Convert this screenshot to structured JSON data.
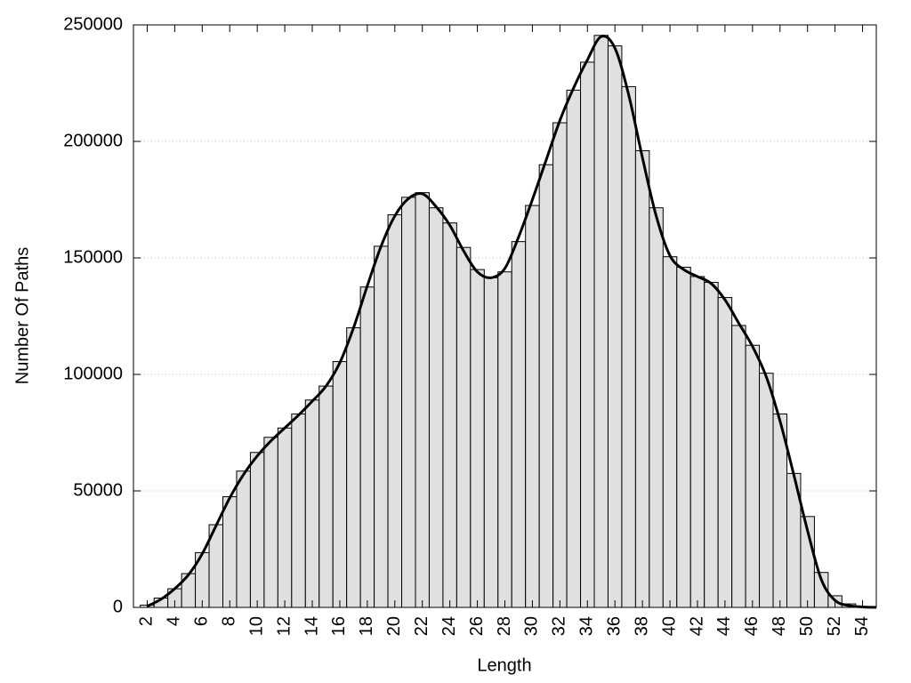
{
  "chart_data": {
    "type": "histogram",
    "x_label": "Length",
    "y_label": "Number Of Paths",
    "bins": [
      1.5,
      2.5,
      3.5,
      4.5,
      5.5,
      6.5,
      7.5,
      8.5,
      9.5,
      10.5,
      11.5,
      12.5,
      13.5,
      14.5,
      15.5,
      16.5,
      17.5,
      18.5,
      19.5,
      20.5,
      21.5,
      22.5,
      23.5,
      24.5,
      25.5,
      26.5,
      27.5,
      28.5,
      29.5,
      30.5,
      31.5,
      32.5,
      33.5,
      34.5,
      35.5,
      36.5,
      37.5,
      38.5,
      39.5,
      40.5,
      41.5,
      42.5,
      43.5,
      44.5,
      45.5,
      46.5,
      47.5,
      48.5,
      49.5,
      50.5,
      51.5,
      52.5,
      53.5,
      54.5
    ],
    "values": [
      1000,
      4000,
      8000,
      14500,
      23500,
      35500,
      47500,
      58500,
      66500,
      73000,
      77000,
      83000,
      89000,
      95000,
      105500,
      120000,
      137500,
      155000,
      168500,
      176000,
      178000,
      171500,
      165000,
      154500,
      145000,
      141500,
      144000,
      157000,
      172500,
      190000,
      208000,
      222000,
      234000,
      245500,
      241000,
      223500,
      196000,
      171500,
      150500,
      146000,
      142000,
      139500,
      133000,
      121000,
      112500,
      100500,
      83000,
      57500,
      39000,
      15000,
      5000,
      1500,
      300
    ],
    "color": "#e0e0e0",
    "curve": {
      "color": "#000000",
      "x": [
        2,
        3,
        4,
        5,
        6,
        7,
        8,
        9,
        10,
        11,
        12,
        13,
        14,
        15,
        16,
        17,
        18,
        19,
        20,
        21,
        22,
        23,
        24,
        25,
        26,
        27,
        28,
        29,
        30,
        31,
        32,
        33,
        34,
        35,
        36,
        37,
        38,
        39,
        40,
        41,
        42,
        43,
        44,
        45,
        46,
        47,
        48,
        49,
        50,
        51,
        52,
        53,
        54,
        55
      ],
      "values": [
        500,
        3500,
        8000,
        14000,
        23000,
        35000,
        47000,
        57000,
        65000,
        71500,
        77000,
        82500,
        88500,
        95000,
        105000,
        120000,
        138000,
        155000,
        168000,
        175500,
        177500,
        172000,
        164000,
        153000,
        144000,
        141500,
        145500,
        159000,
        175000,
        192000,
        209000,
        223000,
        235000,
        245000,
        240000,
        220000,
        193000,
        168000,
        151000,
        145000,
        142000,
        139000,
        132000,
        122000,
        112000,
        99000,
        80000,
        57000,
        33000,
        12000,
        3000,
        800,
        200,
        0
      ]
    },
    "xlim": [
      1,
      55
    ],
    "ylim": [
      0,
      250000
    ],
    "xticks": [
      2,
      4,
      6,
      8,
      10,
      12,
      14,
      16,
      18,
      20,
      22,
      24,
      26,
      28,
      30,
      32,
      34,
      36,
      38,
      40,
      42,
      44,
      46,
      48,
      50,
      52,
      54
    ],
    "yticks": [
      0,
      50000,
      100000,
      150000,
      200000,
      250000
    ],
    "grid": true
  }
}
